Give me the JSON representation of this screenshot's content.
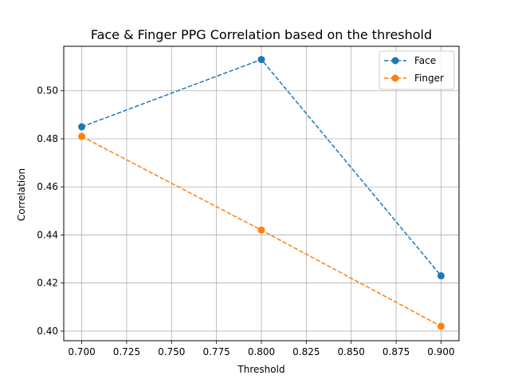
{
  "chart_data": {
    "type": "line",
    "title": "Face & Finger PPG Correlation based on the threshold",
    "xlabel": "Threshold",
    "ylabel": "Correlation",
    "xlim": [
      0.69,
      0.91
    ],
    "ylim": [
      0.396,
      0.5185
    ],
    "x_ticks": [
      "0.700",
      "0.725",
      "0.750",
      "0.775",
      "0.800",
      "0.825",
      "0.850",
      "0.875",
      "0.900"
    ],
    "y_ticks": [
      "0.40",
      "0.42",
      "0.44",
      "0.46",
      "0.48",
      "0.50"
    ],
    "grid": true,
    "legend_position": "top-right",
    "series": [
      {
        "name": "Face",
        "color": "#1f77b4",
        "line_style": "dashed",
        "marker": "circle",
        "x": [
          0.7,
          0.8,
          0.9
        ],
        "y": [
          0.485,
          0.513,
          0.423
        ]
      },
      {
        "name": "Finger",
        "color": "#ff7f0e",
        "line_style": "dashed",
        "marker": "circle",
        "x": [
          0.7,
          0.8,
          0.9
        ],
        "y": [
          0.481,
          0.442,
          0.402
        ]
      }
    ]
  }
}
